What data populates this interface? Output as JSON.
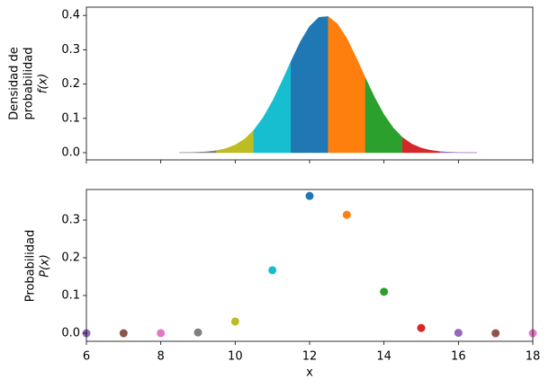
{
  "chart_data": [
    {
      "type": "area",
      "ylabel": [
        "Densidad de",
        "probabilidad",
        "f(x)"
      ],
      "xlim": [
        6,
        18
      ],
      "xticks": [
        6,
        8,
        10,
        12,
        14,
        16,
        18
      ],
      "ylim": [
        -0.021,
        0.424
      ],
      "yticks": [
        {
          "value": 0,
          "label": "0.0"
        },
        0.1,
        0.2,
        0.3,
        0.4
      ],
      "series": [
        {
          "color": "#7f7f7f",
          "x": [
            8.5,
            8.75,
            9.0,
            9.25,
            9.5
          ],
          "values": [
            0.0002,
            0.0005,
            0.0012,
            0.0028,
            0.0059
          ]
        },
        {
          "color": "#bcbd22",
          "x": [
            9.5,
            9.75,
            10.0,
            10.25,
            10.5
          ],
          "values": [
            0.0059,
            0.0119,
            0.0224,
            0.0396,
            0.0656
          ]
        },
        {
          "color": "#17becf",
          "x": [
            10.5,
            10.75,
            11.0,
            11.25,
            11.5
          ],
          "values": [
            0.0656,
            0.1023,
            0.1497,
            0.206,
            0.2661
          ]
        },
        {
          "color": "#1f77b4",
          "x": [
            11.5,
            11.75,
            12.0,
            12.25,
            12.5
          ],
          "values": [
            0.2661,
            0.323,
            0.3683,
            0.3945,
            0.3969
          ]
        },
        {
          "color": "#ff7f0e",
          "x": [
            12.5,
            12.75,
            13.0,
            13.25,
            13.5
          ],
          "values": [
            0.3969,
            0.3752,
            0.3332,
            0.278,
            0.2179
          ]
        },
        {
          "color": "#2ca02c",
          "x": [
            13.5,
            13.75,
            14.0,
            14.25,
            14.5
          ],
          "values": [
            0.2179,
            0.1604,
            0.1109,
            0.0721,
            0.044
          ]
        },
        {
          "color": "#d62728",
          "x": [
            14.5,
            14.75,
            15.0,
            15.25,
            15.5
          ],
          "values": [
            0.044,
            0.0252,
            0.0136,
            0.0069,
            0.0033
          ]
        },
        {
          "color": "#9467bd",
          "x": [
            15.5,
            15.75,
            16.0,
            16.25,
            16.5
          ],
          "values": [
            0.0033,
            0.0015,
            0.0006,
            0.0002,
            0.0001
          ]
        }
      ]
    },
    {
      "type": "scatter",
      "ylabel": [
        "Probabilidad",
        "P(x)"
      ],
      "xlabel": "x",
      "xlim": [
        6,
        18
      ],
      "xticks": [
        6,
        8,
        10,
        12,
        14,
        16,
        18
      ],
      "ylim": [
        -0.0214,
        0.381
      ],
      "yticks": [
        {
          "value": 0,
          "label": "0.0"
        },
        0.1,
        0.2,
        0.3
      ],
      "x": [
        6,
        7,
        8,
        9,
        10,
        11,
        12,
        13,
        14,
        15,
        16,
        17,
        18
      ],
      "values": [
        0,
        0,
        0.0003,
        0.002,
        0.031,
        0.167,
        0.364,
        0.314,
        0.11,
        0.014,
        0.001,
        0,
        0
      ],
      "colors": [
        "#9467bd",
        "#8c564b",
        "#e377c2",
        "#7f7f7f",
        "#bcbd22",
        "#17becf",
        "#1f77b4",
        "#ff7f0e",
        "#2ca02c",
        "#d62728",
        "#9467bd",
        "#8c564b",
        "#e377c2"
      ]
    }
  ]
}
